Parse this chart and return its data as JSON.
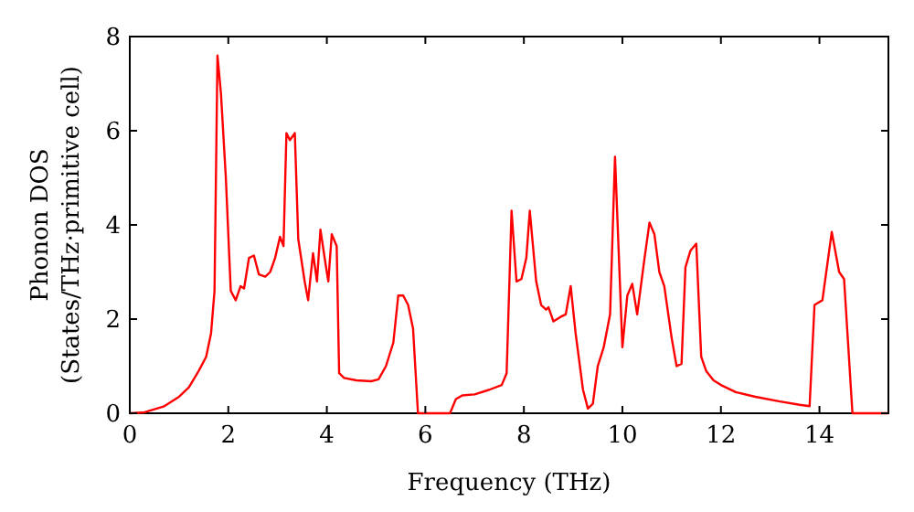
{
  "chart_data": {
    "type": "line",
    "xlabel": "Frequency (THz)",
    "ylabel": "Phonon DOS\n(States/THz·primitive cell)",
    "xlim": [
      0,
      15.4
    ],
    "ylim": [
      0,
      8
    ],
    "xticks": [
      0,
      2,
      4,
      6,
      8,
      10,
      12,
      14
    ],
    "yticks": [
      0,
      2,
      4,
      6,
      8
    ],
    "grid": false,
    "marker": "none",
    "line_style": "solid",
    "series": [
      {
        "color": "#ff0000",
        "x": [
          0,
          0.3,
          0.7,
          1.0,
          1.2,
          1.4,
          1.55,
          1.65,
          1.72,
          1.78,
          1.85,
          1.95,
          2.05,
          2.15,
          2.25,
          2.32,
          2.42,
          2.52,
          2.62,
          2.75,
          2.85,
          2.95,
          3.05,
          3.12,
          3.18,
          3.25,
          3.35,
          3.42,
          3.55,
          3.62,
          3.72,
          3.8,
          3.87,
          3.97,
          4.03,
          4.1,
          4.2,
          4.25,
          4.35,
          4.6,
          4.9,
          5.05,
          5.2,
          5.35,
          5.45,
          5.55,
          5.65,
          5.75,
          5.85,
          6.5,
          6.62,
          6.75,
          7.0,
          7.3,
          7.55,
          7.65,
          7.75,
          7.85,
          7.95,
          8.05,
          8.12,
          8.25,
          8.35,
          8.45,
          8.5,
          8.6,
          8.75,
          8.85,
          8.95,
          9.05,
          9.2,
          9.3,
          9.4,
          9.5,
          9.62,
          9.75,
          9.85,
          10.0,
          10.1,
          10.2,
          10.3,
          10.45,
          10.55,
          10.65,
          10.75,
          10.85,
          11.0,
          11.1,
          11.2,
          11.28,
          11.38,
          11.5,
          11.6,
          11.7,
          11.85,
          12.0,
          12.3,
          12.7,
          13.2,
          13.6,
          13.8,
          13.9,
          14.06,
          14.25,
          14.4,
          14.5,
          14.67,
          15.4
        ],
        "values": [
          0,
          0.02,
          0.15,
          0.35,
          0.55,
          0.9,
          1.2,
          1.7,
          2.6,
          7.6,
          6.8,
          5.0,
          2.6,
          2.4,
          2.7,
          2.65,
          3.3,
          3.35,
          2.95,
          2.9,
          3.0,
          3.3,
          3.75,
          3.55,
          5.95,
          5.8,
          5.95,
          3.7,
          2.8,
          2.4,
          3.4,
          2.8,
          3.9,
          3.2,
          2.8,
          3.8,
          3.55,
          0.85,
          0.75,
          0.7,
          0.68,
          0.72,
          1.0,
          1.5,
          2.5,
          2.5,
          2.3,
          1.8,
          0,
          0,
          0.3,
          0.38,
          0.4,
          0.5,
          0.6,
          0.85,
          4.3,
          2.8,
          2.85,
          3.3,
          4.3,
          2.8,
          2.3,
          2.2,
          2.25,
          1.95,
          2.05,
          2.1,
          2.7,
          1.7,
          0.5,
          0.1,
          0.2,
          1.0,
          1.4,
          2.1,
          5.45,
          1.4,
          2.5,
          2.75,
          2.1,
          3.3,
          4.05,
          3.8,
          3.0,
          2.7,
          1.6,
          1.0,
          1.05,
          3.1,
          3.45,
          3.6,
          1.2,
          0.9,
          0.7,
          0.6,
          0.45,
          0.35,
          0.25,
          0.18,
          0.15,
          2.3,
          2.4,
          3.85,
          3.0,
          2.85,
          0,
          0
        ]
      }
    ]
  }
}
